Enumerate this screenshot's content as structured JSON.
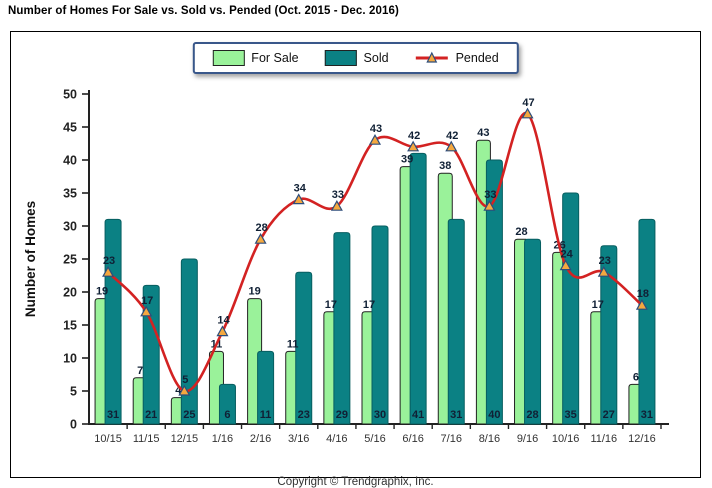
{
  "page_title": "Number of Homes For Sale vs. Sold vs. Pended (Oct. 2015 - Dec. 2016)",
  "footer": {
    "copyright": "Copyright © Trendgraphix, Inc."
  },
  "colors": {
    "for_sale_fill": "#9AF29A",
    "for_sale_border": "#222222",
    "sold_fill": "#0B8184",
    "sold_border": "#075E60",
    "pended_line": "#D32222",
    "marker_fill": "#F5A83F",
    "marker_border": "#2E4D7B",
    "value_label": "#102035",
    "axis": "#222222",
    "tick_label": "#333333",
    "legend_border": "#39578A"
  },
  "chart_data": {
    "type": "bar",
    "title": "Number of Homes For Sale vs. Sold vs. Pended (Oct. 2015 - Dec. 2016)",
    "categories": [
      "10/15",
      "11/15",
      "12/15",
      "1/16",
      "2/16",
      "3/16",
      "4/16",
      "5/16",
      "6/16",
      "7/16",
      "8/16",
      "9/16",
      "10/16",
      "11/16",
      "12/16"
    ],
    "series": [
      {
        "name": "For Sale",
        "type": "bar",
        "values": [
          19,
          7,
          4,
          11,
          19,
          11,
          17,
          17,
          39,
          38,
          43,
          28,
          26,
          17,
          6
        ]
      },
      {
        "name": "Sold",
        "type": "bar",
        "values": [
          31,
          21,
          25,
          6,
          11,
          23,
          29,
          30,
          41,
          31,
          40,
          28,
          35,
          27,
          31
        ]
      },
      {
        "name": "Pended",
        "type": "line",
        "marker": "triangle",
        "values": [
          23,
          17,
          5,
          14,
          28,
          34,
          33,
          43,
          42,
          42,
          33,
          47,
          24,
          23,
          18
        ]
      }
    ],
    "xlabel": "",
    "ylabel": "Number of Homes",
    "ylim": [
      0,
      50
    ],
    "ytick_step": 5,
    "grid": false,
    "legend_position": "top-center"
  }
}
